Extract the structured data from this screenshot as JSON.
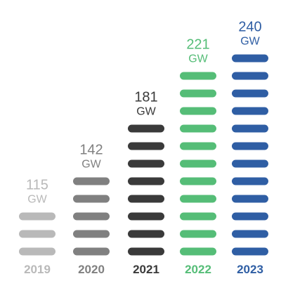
{
  "chart_data": {
    "type": "bar",
    "categories": [
      "2019",
      "2020",
      "2021",
      "2022",
      "2023"
    ],
    "values": [
      115,
      142,
      181,
      221,
      240
    ],
    "value_labels": [
      "115",
      "142",
      "181",
      "221",
      "240"
    ],
    "unit": "GW",
    "bar_segments": [
      3,
      5,
      8,
      11,
      12
    ],
    "colors": [
      "#b9b9b9",
      "#808080",
      "#3a3a3a",
      "#55bd77",
      "#2f5ea4"
    ],
    "title": "",
    "xlabel": "",
    "ylabel": ""
  }
}
